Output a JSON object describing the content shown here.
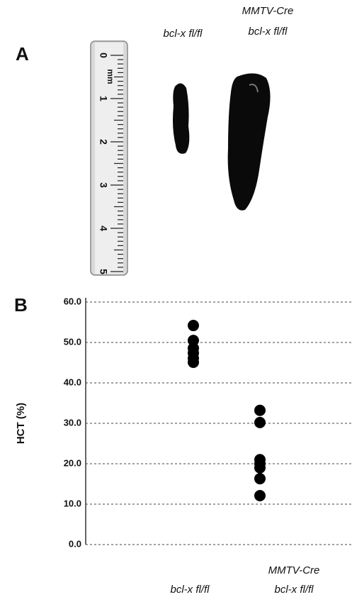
{
  "panel_a": {
    "label": "A",
    "sample_labels": [
      [
        "bcl-x fl/fl"
      ],
      [
        "MMTV-Cre",
        "bcl-x fl/fl"
      ]
    ],
    "ruler_unit": "mm",
    "ruler_numbers": [
      "0",
      "1",
      "2",
      "3",
      "4",
      "5"
    ]
  },
  "chart_data": {
    "type": "dot",
    "panel_label": "B",
    "y_label": "HCT (%)",
    "categories": [
      [
        "bcl-x fl/fl"
      ],
      [
        "MMTV-Cre",
        "bcl-x fl/fl"
      ]
    ],
    "values": [
      [
        54.2,
        50.5,
        48.6,
        47.4,
        46.1,
        45.1
      ],
      [
        33.2,
        30.2,
        21.0,
        20.0,
        19.0,
        16.3,
        12.1
      ]
    ],
    "color": "#000000",
    "ylim": [
      0,
      60
    ],
    "yticks": [
      {
        "value": 0,
        "label": "0.0"
      },
      {
        "value": 10,
        "label": "10.0"
      },
      {
        "value": 20,
        "label": "20.0"
      },
      {
        "value": 30,
        "label": "30.0"
      },
      {
        "value": 40,
        "label": "40.0"
      },
      {
        "value": 50,
        "label": "50.0"
      },
      {
        "value": 60,
        "label": "60.0"
      }
    ],
    "grid": true
  }
}
